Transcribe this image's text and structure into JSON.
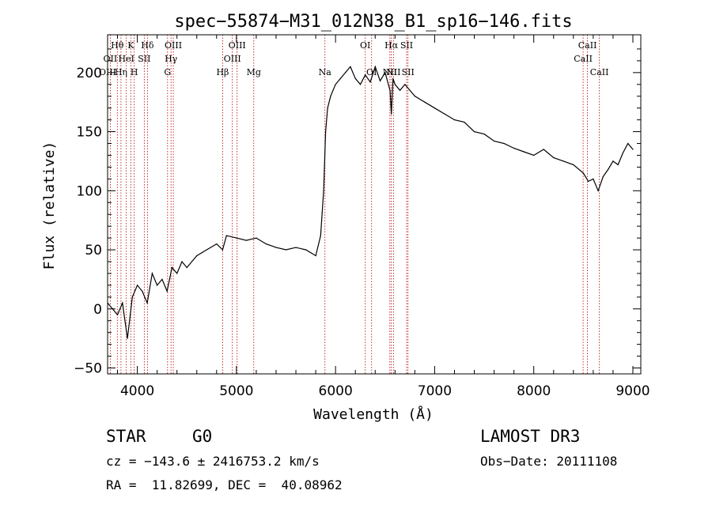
{
  "chart_data": {
    "type": "line",
    "title": "spec−55874−M31_012N38_B1_sp16−146.fits",
    "xlabel": "Wavelength (Å)",
    "ylabel": "Flux (relative)",
    "xlim": [
      3700,
      9080
    ],
    "ylim": [
      -55,
      232
    ],
    "xticks": [
      4000,
      5000,
      6000,
      7000,
      8000,
      9000
    ],
    "yticks": [
      -50,
      0,
      50,
      100,
      150,
      200
    ],
    "ytick_labels": [
      "−50",
      "0",
      "50",
      "100",
      "150",
      "200"
    ],
    "grid": false,
    "series": [
      {
        "name": "spectrum",
        "x": [
          3700,
          3750,
          3800,
          3850,
          3900,
          3950,
          4000,
          4050,
          4100,
          4150,
          4200,
          4250,
          4300,
          4350,
          4400,
          4450,
          4500,
          4600,
          4700,
          4800,
          4861,
          4900,
          5000,
          5100,
          5200,
          5300,
          5400,
          5500,
          5600,
          5700,
          5800,
          5850,
          5880,
          5900,
          5920,
          5950,
          6000,
          6050,
          6100,
          6150,
          6200,
          6250,
          6300,
          6350,
          6400,
          6450,
          6500,
          6550,
          6563,
          6580,
          6600,
          6650,
          6700,
          6750,
          6800,
          6900,
          7000,
          7100,
          7200,
          7300,
          7400,
          7500,
          7600,
          7700,
          7800,
          7900,
          8000,
          8100,
          8200,
          8300,
          8400,
          8500,
          8550,
          8600,
          8650,
          8700,
          8750,
          8800,
          8850,
          8900,
          8950,
          9000
        ],
        "y": [
          5,
          0,
          -5,
          5,
          -25,
          10,
          20,
          15,
          5,
          30,
          20,
          25,
          15,
          35,
          30,
          40,
          35,
          45,
          50,
          55,
          50,
          62,
          60,
          58,
          60,
          55,
          52,
          50,
          52,
          50,
          45,
          62,
          100,
          150,
          170,
          180,
          190,
          195,
          200,
          205,
          195,
          190,
          198,
          192,
          205,
          193,
          200,
          185,
          165,
          195,
          190,
          185,
          190,
          185,
          180,
          175,
          170,
          165,
          160,
          158,
          150,
          148,
          142,
          140,
          136,
          133,
          130,
          135,
          128,
          125,
          122,
          115,
          108,
          110,
          100,
          112,
          118,
          125,
          122,
          132,
          140,
          135
        ]
      }
    ],
    "line_markers": [
      {
        "label": "Hθ",
        "x": 3798,
        "row": 0
      },
      {
        "label": "K",
        "x": 3934,
        "row": 0
      },
      {
        "label": "Hδ",
        "x": 4102,
        "row": 0
      },
      {
        "label": "OIII",
        "x": 4363,
        "row": 0
      },
      {
        "label": "OIII",
        "x": 5007,
        "row": 0
      },
      {
        "label": "OI",
        "x": 6300,
        "row": 0
      },
      {
        "label": "Hα",
        "x": 6563,
        "row": 0
      },
      {
        "label": "SII",
        "x": 6717,
        "row": 0
      },
      {
        "label": "CaII",
        "x": 8542,
        "row": 0
      },
      {
        "label": "OII",
        "x": 3727,
        "row": 1
      },
      {
        "label": "HeI",
        "x": 3889,
        "row": 1
      },
      {
        "label": "SII",
        "x": 4070,
        "row": 1
      },
      {
        "label": "Hγ",
        "x": 4340,
        "row": 1
      },
      {
        "label": "OIII",
        "x": 4959,
        "row": 1
      },
      {
        "label": "CaII",
        "x": 8498,
        "row": 1
      },
      {
        "label": "OIII",
        "x": 3700,
        "row": 2
      },
      {
        "label": "Hη",
        "x": 3835,
        "row": 2
      },
      {
        "label": "H",
        "x": 3969,
        "row": 2
      },
      {
        "label": "G",
        "x": 4305,
        "row": 2
      },
      {
        "label": "Hβ",
        "x": 4861,
        "row": 2
      },
      {
        "label": "Mg",
        "x": 5175,
        "row": 2
      },
      {
        "label": "Na",
        "x": 5893,
        "row": 2
      },
      {
        "label": "OI",
        "x": 6364,
        "row": 2
      },
      {
        "label": "NII",
        "x": 6548,
        "row": 2
      },
      {
        "label": "NII",
        "x": 6584,
        "row": 2
      },
      {
        "label": "SII",
        "x": 6731,
        "row": 2
      },
      {
        "label": "CaII",
        "x": 8662,
        "row": 2
      }
    ]
  },
  "info": {
    "class": "STAR",
    "subclass": "G0",
    "survey": "LAMOST DR3",
    "cz": "cz = −143.6 ± 2416753.2 km/s",
    "obs_date": "Obs−Date: 20111108",
    "coords": "RA =  11.82699, DEC =  40.08962"
  },
  "colors": {
    "spectrum": "#000000",
    "marker": "#b30000",
    "axis": "#000000"
  }
}
